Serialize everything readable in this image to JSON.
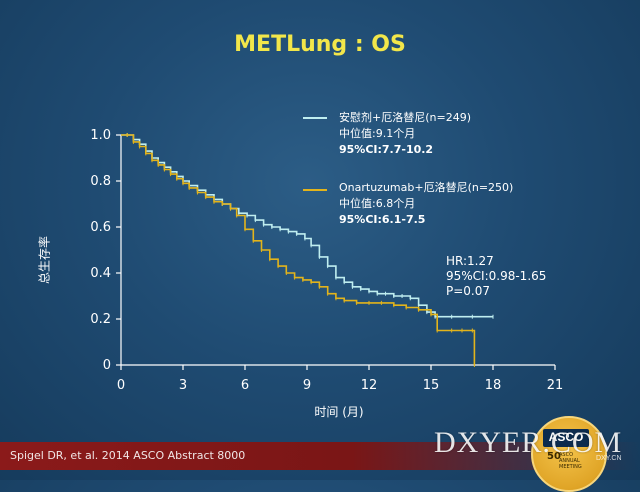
{
  "title": "METLung : OS",
  "footer": {
    "citation": "Spigel DR, et al. 2014 ASCO Abstract 8000"
  },
  "logo": {
    "asco_text": "ASCO",
    "years": "50",
    "sub": "ASCO ANNUAL MEETING"
  },
  "watermark": {
    "text": "DXYER.COM",
    "small": "DXY.CN"
  },
  "legend": [
    {
      "line1": "安慰剂+厄洛替尼(n=249)",
      "line2": "中位值:9.1个月",
      "line3": "95%CI:7.7-10.2",
      "color": "#bfeef0"
    },
    {
      "line1": "Onartuzumab+厄洛替尼(n=250)",
      "line2": "中位值:6.8个月",
      "line3": "95%CI:6.1-7.5",
      "color": "#e3b41b"
    }
  ],
  "stats": {
    "hr": "HR:1.27",
    "ci": "95%CI:0.98-1.65",
    "p": "P=0.07"
  },
  "chart_data": {
    "type": "line",
    "title": "METLung : OS",
    "xlabel": "时间 (月)",
    "ylabel": "总生存率",
    "xlim": [
      0,
      21
    ],
    "ylim": [
      0,
      1.0
    ],
    "xticks": [
      0,
      3,
      6,
      9,
      12,
      15,
      18,
      21
    ],
    "yticks": [
      0,
      0.2,
      0.4,
      0.6,
      0.8,
      1.0
    ],
    "ytick_labels": [
      "0",
      "0.2",
      "0.4",
      "0.6",
      "0.8",
      "1.0"
    ],
    "series": [
      {
        "name": "安慰剂+厄洛替尼(n=249)",
        "color": "#bfeef0",
        "step": true,
        "x": [
          0,
          0.3,
          0.6,
          0.9,
          1.2,
          1.5,
          1.8,
          2.1,
          2.4,
          2.7,
          3.0,
          3.3,
          3.7,
          4.1,
          4.5,
          4.9,
          5.3,
          5.7,
          6.1,
          6.5,
          6.9,
          7.3,
          7.7,
          8.1,
          8.5,
          8.9,
          9.2,
          9.6,
          10.0,
          10.4,
          10.8,
          11.2,
          11.6,
          12.0,
          12.4,
          12.8,
          13.2,
          13.6,
          14.0,
          14.4,
          14.8,
          15.2,
          16.0,
          17.0,
          18.0
        ],
        "y": [
          1.0,
          1.0,
          0.98,
          0.96,
          0.93,
          0.9,
          0.88,
          0.86,
          0.84,
          0.82,
          0.8,
          0.78,
          0.76,
          0.74,
          0.72,
          0.7,
          0.68,
          0.66,
          0.65,
          0.63,
          0.61,
          0.6,
          0.59,
          0.58,
          0.57,
          0.55,
          0.52,
          0.47,
          0.43,
          0.38,
          0.36,
          0.34,
          0.33,
          0.32,
          0.31,
          0.31,
          0.3,
          0.3,
          0.29,
          0.26,
          0.23,
          0.21,
          0.21,
          0.21,
          0.21
        ]
      },
      {
        "name": "Onartuzumab+厄洛替尼(n=250)",
        "color": "#e3b41b",
        "step": true,
        "x": [
          0,
          0.3,
          0.6,
          0.9,
          1.2,
          1.5,
          1.8,
          2.1,
          2.4,
          2.7,
          3.0,
          3.3,
          3.7,
          4.1,
          4.5,
          4.9,
          5.3,
          5.6,
          6.0,
          6.4,
          6.8,
          7.2,
          7.6,
          8.0,
          8.4,
          8.8,
          9.2,
          9.6,
          10.0,
          10.4,
          10.8,
          11.4,
          12.0,
          12.6,
          13.2,
          13.8,
          14.4,
          15.0,
          15.3,
          16.0,
          16.5,
          17.0,
          17.1
        ],
        "y": [
          1.0,
          1.0,
          0.97,
          0.95,
          0.92,
          0.89,
          0.87,
          0.85,
          0.83,
          0.81,
          0.79,
          0.77,
          0.75,
          0.73,
          0.71,
          0.7,
          0.68,
          0.65,
          0.59,
          0.54,
          0.5,
          0.46,
          0.43,
          0.4,
          0.38,
          0.37,
          0.36,
          0.34,
          0.31,
          0.29,
          0.28,
          0.27,
          0.27,
          0.27,
          0.26,
          0.25,
          0.24,
          0.22,
          0.15,
          0.15,
          0.15,
          0.15,
          0.0
        ]
      }
    ]
  }
}
